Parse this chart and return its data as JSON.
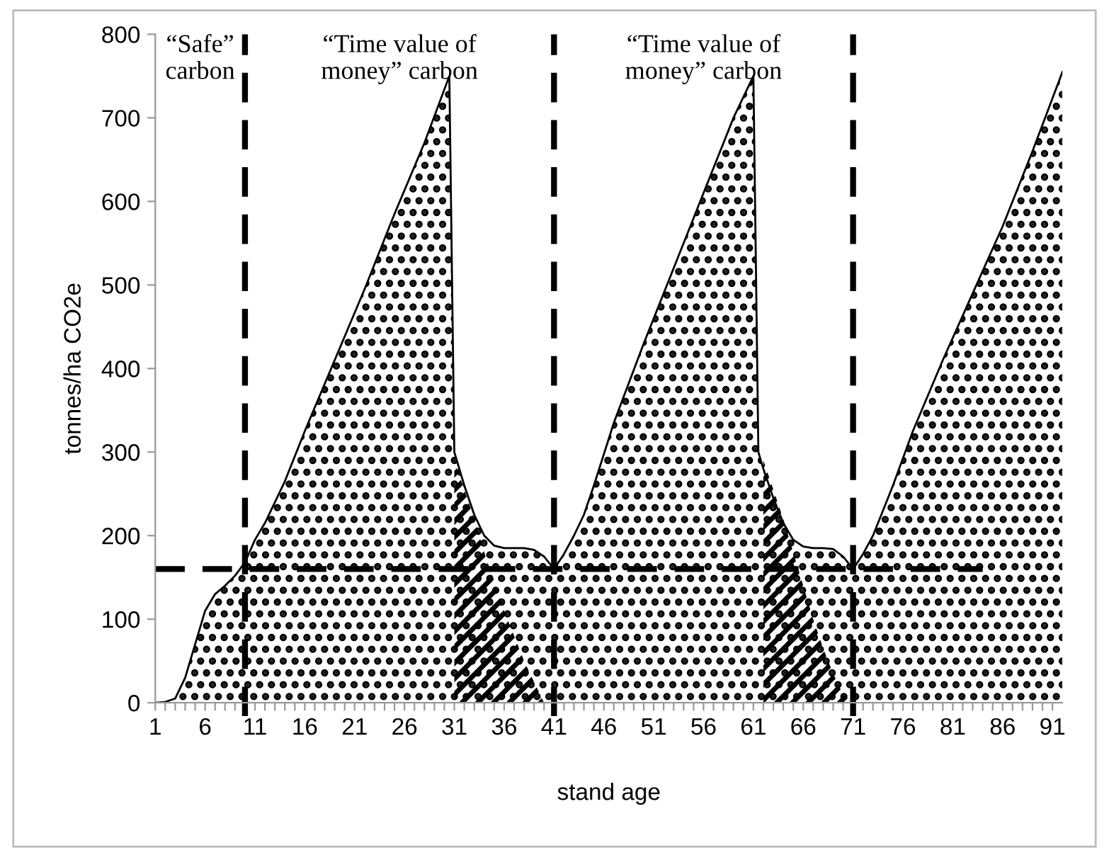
{
  "chart_data": {
    "type": "area",
    "xlabel": "stand age",
    "ylabel": "tonnes/ha CO2e",
    "annotations": [
      "“Safe”\ncarbon",
      "“Time value of\nmoney” carbon",
      "“Time value of\nmoney” carbon"
    ],
    "series": [
      {
        "color": "#000000",
        "x": [
          1,
          2,
          3,
          4,
          5,
          6,
          7,
          8,
          9,
          10,
          11,
          12,
          14,
          16,
          19,
          22,
          25,
          28,
          30.5,
          31,
          32,
          33,
          34,
          35,
          36,
          37,
          38,
          39,
          40,
          41,
          42,
          43,
          44,
          45,
          47,
          50,
          53,
          56,
          59,
          61,
          61.5,
          62,
          63,
          64,
          65,
          66,
          67,
          68,
          69,
          70,
          71,
          72,
          73,
          75,
          77,
          80,
          83,
          86,
          89,
          92
        ],
        "values": [
          0,
          1,
          5,
          30,
          70,
          110,
          130,
          140,
          152,
          168,
          195,
          215,
          265,
          325,
          410,
          495,
          585,
          670,
          750,
          300,
          260,
          225,
          200,
          188,
          185,
          185,
          185,
          183,
          175,
          160,
          178,
          200,
          225,
          260,
          335,
          430,
          520,
          610,
          700,
          750,
          300,
          280,
          245,
          215,
          195,
          187,
          185,
          185,
          184,
          175,
          160,
          178,
          200,
          260,
          325,
          410,
          490,
          570,
          660,
          755
        ]
      },
      {
        "color": "#000000",
        "x": [
          31,
          32,
          33,
          34,
          35,
          36,
          37,
          38,
          39,
          40,
          50,
          62,
          63,
          64,
          65,
          66,
          67,
          68,
          69,
          70,
          71
        ],
        "values": [
          290,
          255,
          220,
          180,
          145,
          110,
          80,
          50,
          25,
          0,
          null,
          290,
          255,
          220,
          180,
          140,
          100,
          65,
          35,
          10,
          0
        ]
      },
      {
        "type": "line",
        "color": "#000000",
        "line_style": "dashed",
        "x": [
          1,
          84
        ],
        "values": [
          160,
          160
        ]
      }
    ],
    "ref_lines": [
      {
        "axis": "x",
        "value": 10,
        "color": "#000000",
        "line_style": "dashed"
      },
      {
        "axis": "x",
        "value": 41,
        "color": "#000000",
        "line_style": "dashed"
      },
      {
        "axis": "x",
        "value": 71,
        "color": "#000000",
        "line_style": "dashed"
      }
    ],
    "xlim": [
      1,
      92
    ],
    "ylim": [
      0,
      800
    ],
    "yticks": [
      0,
      100,
      200,
      300,
      400,
      500,
      600,
      700,
      800
    ],
    "xticks": [
      1,
      {
        "value": 2,
        "label": null
      },
      {
        "value": 3,
        "label": null
      },
      {
        "value": 4,
        "label": null
      },
      {
        "value": 5,
        "label": null
      },
      6,
      {
        "value": 7,
        "label": null
      },
      {
        "value": 8,
        "label": null
      },
      {
        "value": 9,
        "label": null
      },
      {
        "value": 10,
        "label": null
      },
      11,
      {
        "value": 12,
        "label": null
      },
      {
        "value": 13,
        "label": null
      },
      {
        "value": 14,
        "label": null
      },
      {
        "value": 15,
        "label": null
      },
      16,
      {
        "value": 17,
        "label": null
      },
      {
        "value": 18,
        "label": null
      },
      {
        "value": 19,
        "label": null
      },
      {
        "value": 20,
        "label": null
      },
      21,
      {
        "value": 22,
        "label": null
      },
      {
        "value": 23,
        "label": null
      },
      {
        "value": 24,
        "label": null
      },
      {
        "value": 25,
        "label": null
      },
      26,
      {
        "value": 27,
        "label": null
      },
      {
        "value": 28,
        "label": null
      },
      {
        "value": 29,
        "label": null
      },
      {
        "value": 30,
        "label": null
      },
      31,
      {
        "value": 32,
        "label": null
      },
      {
        "value": 33,
        "label": null
      },
      {
        "value": 34,
        "label": null
      },
      {
        "value": 35,
        "label": null
      },
      36,
      {
        "value": 37,
        "label": null
      },
      {
        "value": 38,
        "label": null
      },
      {
        "value": 39,
        "label": null
      },
      {
        "value": 40,
        "label": null
      },
      41,
      {
        "value": 42,
        "label": null
      },
      {
        "value": 43,
        "label": null
      },
      {
        "value": 44,
        "label": null
      },
      {
        "value": 45,
        "label": null
      },
      46,
      {
        "value": 47,
        "label": null
      },
      {
        "value": 48,
        "label": null
      },
      {
        "value": 49,
        "label": null
      },
      {
        "value": 50,
        "label": null
      },
      51,
      {
        "value": 52,
        "label": null
      },
      {
        "value": 53,
        "label": null
      },
      {
        "value": 54,
        "label": null
      },
      {
        "value": 55,
        "label": null
      },
      56,
      {
        "value": 57,
        "label": null
      },
      {
        "value": 58,
        "label": null
      },
      {
        "value": 59,
        "label": null
      },
      {
        "value": 60,
        "label": null
      },
      61,
      {
        "value": 62,
        "label": null
      },
      {
        "value": 63,
        "label": null
      },
      {
        "value": 64,
        "label": null
      },
      {
        "value": 65,
        "label": null
      },
      66,
      {
        "value": 67,
        "label": null
      },
      {
        "value": 68,
        "label": null
      },
      {
        "value": 69,
        "label": null
      },
      {
        "value": 70,
        "label": null
      },
      71,
      {
        "value": 72,
        "label": null
      },
      {
        "value": 73,
        "label": null
      },
      {
        "value": 74,
        "label": null
      },
      {
        "value": 75,
        "label": null
      },
      76,
      {
        "value": 77,
        "label": null
      },
      {
        "value": 78,
        "label": null
      },
      {
        "value": 79,
        "label": null
      },
      {
        "value": 80,
        "label": null
      },
      81,
      {
        "value": 82,
        "label": null
      },
      {
        "value": 83,
        "label": null
      },
      {
        "value": 84,
        "label": null
      },
      {
        "value": 85,
        "label": null
      },
      86,
      {
        "value": 87,
        "label": null
      },
      {
        "value": 88,
        "label": null
      },
      {
        "value": 89,
        "label": null
      },
      {
        "value": 90,
        "label": null
      },
      91
    ],
    "grid": false,
    "legend": false
  }
}
